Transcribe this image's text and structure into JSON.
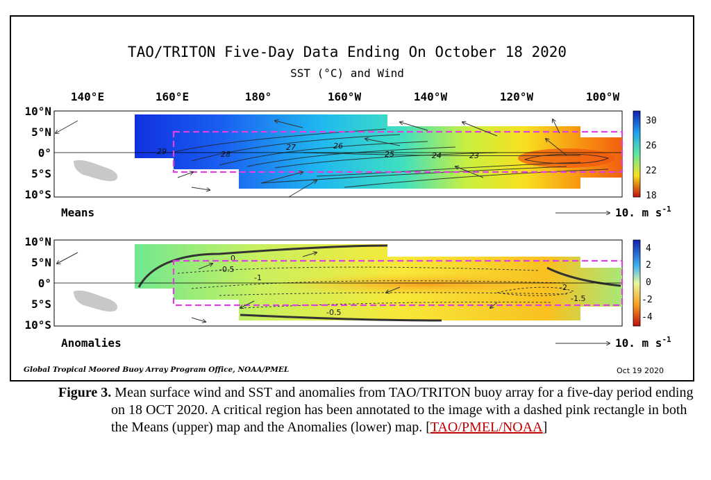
{
  "figure": {
    "title": "TAO/TRITON Five-Day Data Ending On October 18 2020",
    "subtitle": "SST (°C) and Wind",
    "longitude_labels": [
      "140°E",
      "160°E",
      "180°",
      "160°W",
      "140°W",
      "120°W",
      "100°W"
    ],
    "latitude_labels": [
      "10°N",
      "5°N",
      "0°",
      "5°S",
      "10°S"
    ],
    "footer_left": "Global Tropical Moored Buoy Array Program Office, NOAA/PMEL",
    "footer_right": "Oct 19 2020",
    "colors": {
      "annotation_box": "#e040e0",
      "land": "#c8c8c8"
    }
  },
  "chart_data": [
    {
      "type": "heatmap",
      "panel": "Means",
      "variable": "SST (°C)",
      "colorbar_ticks": [
        30,
        26,
        22,
        18
      ],
      "contour_labels": [
        29,
        28,
        27,
        26,
        25,
        24,
        23
      ],
      "reference_vector": "10. m s",
      "reference_vector_exponent": "-1",
      "lon_range": [
        "140°E",
        "100°W"
      ],
      "lat_range": [
        "10°S",
        "10°N"
      ]
    },
    {
      "type": "heatmap",
      "panel": "Anomalies",
      "variable": "SST anomaly (°C)",
      "colorbar_ticks": [
        4,
        2,
        0,
        -2,
        -4
      ],
      "contour_labels": [
        "0",
        "-0.5",
        "-1",
        "-0.5",
        "-2",
        "-1.5"
      ],
      "reference_vector": "10. m s",
      "reference_vector_exponent": "-1",
      "lon_range": [
        "140°E",
        "100°W"
      ],
      "lat_range": [
        "10°S",
        "10°N"
      ]
    }
  ],
  "caption": {
    "label": "Figure 3.",
    "text_before_link": " Mean surface wind and SST and anomalies from TAO/TRITON buoy array for a five-day period ending on 18 OCT 2020. A critical region has been annotated to the image with a dashed pink rectangle in both the Means (upper) map and the Anomalies (lower) map. [",
    "link": "TAO/PMEL/NOAA",
    "text_after_link": "]"
  }
}
